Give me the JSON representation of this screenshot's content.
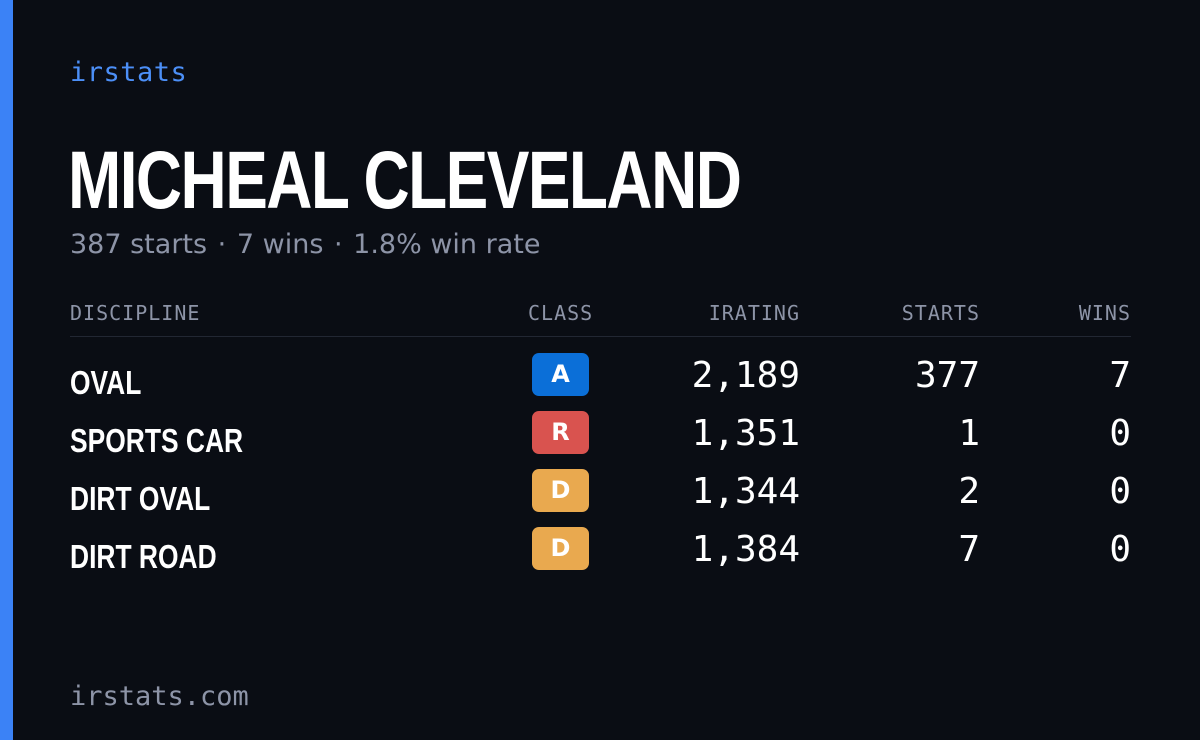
{
  "brand": "irstats",
  "driver": {
    "name": "MICHEAL CLEVELAND",
    "starts_text": "387 starts",
    "wins_text": "7 wins",
    "win_rate_text": "1.8% win rate",
    "separator": "·"
  },
  "table": {
    "headers": {
      "discipline": "DISCIPLINE",
      "class": "CLASS",
      "irating": "IRATING",
      "starts": "STARTS",
      "wins": "WINS"
    },
    "rows": [
      {
        "discipline": "OVAL",
        "class": "A",
        "class_color": "#0b6fd8",
        "irating": "2,189",
        "starts": "377",
        "wins": "7"
      },
      {
        "discipline": "SPORTS CAR",
        "class": "R",
        "class_color": "#d9534f",
        "irating": "1,351",
        "starts": "1",
        "wins": "0"
      },
      {
        "discipline": "DIRT OVAL",
        "class": "D",
        "class_color": "#e9a94f",
        "irating": "1,344",
        "starts": "2",
        "wins": "0"
      },
      {
        "discipline": "DIRT ROAD",
        "class": "D",
        "class_color": "#e9a94f",
        "irating": "1,384",
        "starts": "7",
        "wins": "0"
      }
    ]
  },
  "footer": "irstats.com",
  "colors": {
    "background": "#0a0d14",
    "accent": "#3b82f6",
    "muted_text": "#8d94a7"
  }
}
